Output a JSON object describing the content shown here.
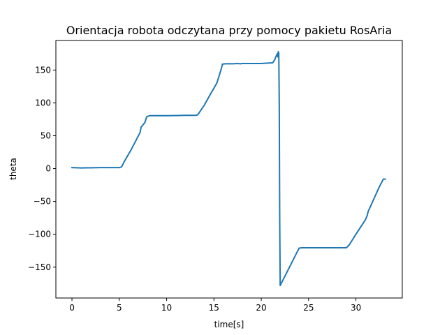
{
  "chart_data": {
    "type": "line",
    "title": "Orientacja robota odczytana przy pomocy pakietu RosAria",
    "xlabel": "time[s]",
    "ylabel": "theta",
    "xlim": [
      -1.7,
      34.9
    ],
    "ylim": [
      -197,
      195
    ],
    "xticks": [
      0,
      5,
      10,
      15,
      20,
      25,
      30
    ],
    "yticks": [
      -150,
      -100,
      -50,
      0,
      50,
      100,
      150
    ],
    "xtick_labels": [
      "0",
      "5",
      "10",
      "15",
      "20",
      "25",
      "30"
    ],
    "ytick_labels": [
      "−150",
      "−100",
      "−50",
      "0",
      "50",
      "100",
      "150"
    ],
    "grid": false,
    "line_color": "#1f77b4",
    "series": [
      {
        "x": [
          0,
          1,
          3,
          5,
          5.15,
          5.25,
          5.4,
          5.5,
          6.3,
          7.2,
          7.3,
          7.7,
          7.9,
          8.2,
          10,
          12,
          13.1,
          13.3,
          14,
          14.5,
          15.3,
          15.7,
          15.9,
          16.2,
          17,
          17.5,
          17.8,
          18,
          19,
          20,
          21.2,
          21.4,
          21.6,
          21.7,
          21.75,
          21.8,
          21.85,
          21.9,
          21.95,
          22.0,
          24.0,
          24.3,
          25,
          27,
          29,
          29.3,
          30,
          31,
          31.2,
          31.3,
          32.5,
          32.9,
          33.1
        ],
        "y": [
          1.5,
          1,
          1.5,
          1.5,
          2,
          3,
          7,
          10,
          30,
          55,
          63,
          70,
          79,
          80.5,
          80.5,
          81,
          81,
          82,
          97,
          110,
          130,
          148,
          159,
          159.5,
          159.5,
          160,
          159.5,
          160,
          160,
          160,
          161,
          165,
          172,
          175,
          170,
          178,
          176,
          100,
          -80,
          -178,
          -121,
          -120.5,
          -120.5,
          -120.5,
          -120.5,
          -116,
          -100,
          -78,
          -71,
          -65,
          -27,
          -16,
          -16
        ]
      }
    ]
  }
}
